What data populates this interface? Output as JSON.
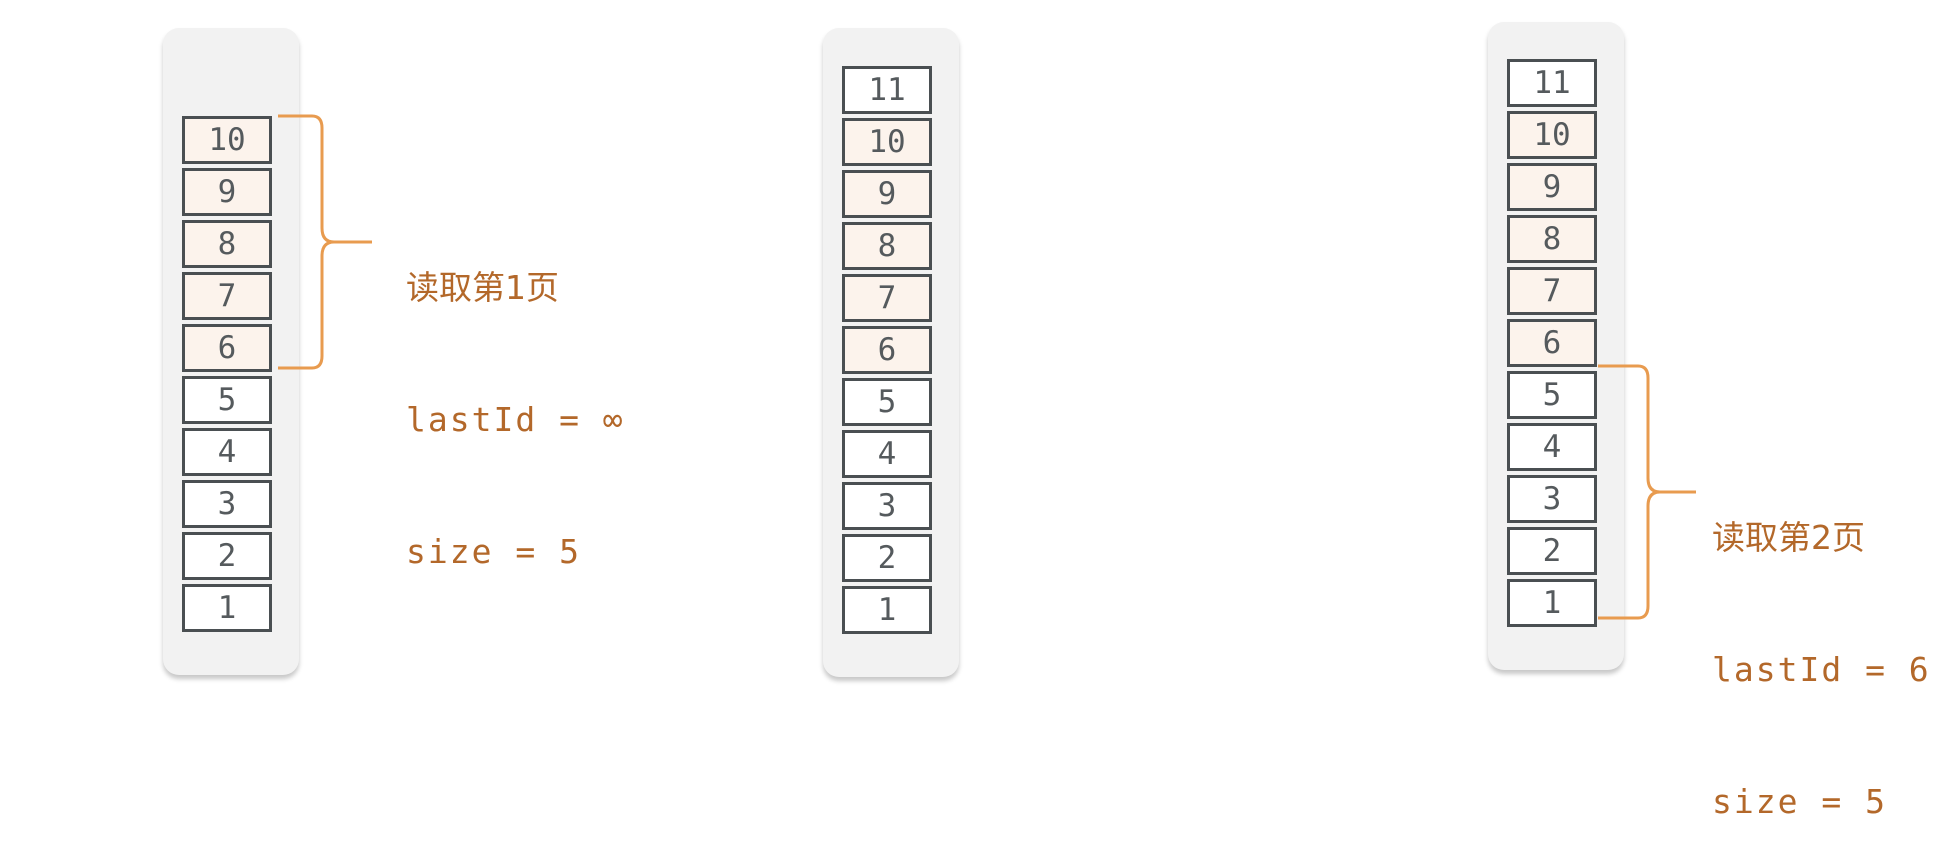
{
  "stacks": [
    {
      "cells": [
        {
          "value": "10",
          "highlighted": true
        },
        {
          "value": "9",
          "highlighted": true
        },
        {
          "value": "8",
          "highlighted": true
        },
        {
          "value": "7",
          "highlighted": true
        },
        {
          "value": "6",
          "highlighted": true
        },
        {
          "value": "5",
          "highlighted": false
        },
        {
          "value": "4",
          "highlighted": false
        },
        {
          "value": "3",
          "highlighted": false
        },
        {
          "value": "2",
          "highlighted": false
        },
        {
          "value": "1",
          "highlighted": false
        }
      ],
      "annotation": {
        "title": "读取第1页",
        "last_id": "lastId = ∞",
        "size": "size = 5"
      }
    },
    {
      "cells": [
        {
          "value": "11",
          "highlighted": false
        },
        {
          "value": "10",
          "highlighted": true
        },
        {
          "value": "9",
          "highlighted": true
        },
        {
          "value": "8",
          "highlighted": true
        },
        {
          "value": "7",
          "highlighted": true
        },
        {
          "value": "6",
          "highlighted": true
        },
        {
          "value": "5",
          "highlighted": false
        },
        {
          "value": "4",
          "highlighted": false
        },
        {
          "value": "3",
          "highlighted": false
        },
        {
          "value": "2",
          "highlighted": false
        },
        {
          "value": "1",
          "highlighted": false
        }
      ]
    },
    {
      "cells": [
        {
          "value": "11",
          "highlighted": false
        },
        {
          "value": "10",
          "highlighted": true
        },
        {
          "value": "9",
          "highlighted": true
        },
        {
          "value": "8",
          "highlighted": true
        },
        {
          "value": "7",
          "highlighted": true
        },
        {
          "value": "6",
          "highlighted": true
        },
        {
          "value": "5",
          "highlighted": false
        },
        {
          "value": "4",
          "highlighted": false
        },
        {
          "value": "3",
          "highlighted": false
        },
        {
          "value": "2",
          "highlighted": false
        },
        {
          "value": "1",
          "highlighted": false
        }
      ],
      "annotation": {
        "title": "读取第2页",
        "last_id": "lastId = 6",
        "size": "size = 5"
      }
    }
  ],
  "colors": {
    "accent": "#e89b4f",
    "label": "#b3682a",
    "cell_border": "#4a4f52",
    "highlight": "#fcf3ec",
    "stack_bg": "#f2f2f2"
  }
}
